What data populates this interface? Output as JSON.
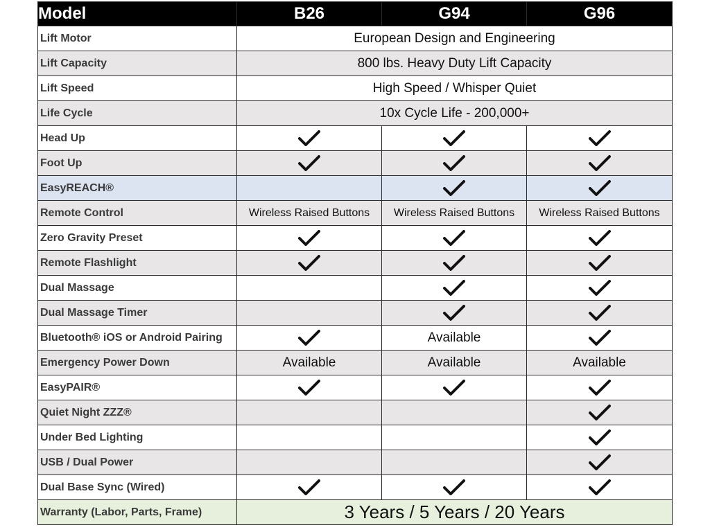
{
  "header": {
    "label": "Model",
    "models": [
      "B26",
      "G94",
      "G96"
    ]
  },
  "rows": [
    {
      "feature": "Lift Motor",
      "span": "European Design and Engineering",
      "bg": "light"
    },
    {
      "feature": "Lift Capacity",
      "span": "800 lbs. Heavy Duty Lift Capacity",
      "bg": "gray"
    },
    {
      "feature": "Lift Speed",
      "span": "High Speed / Whisper Quiet",
      "bg": "light"
    },
    {
      "feature": "Life Cycle",
      "span": "10x Cycle Life - 200,000+",
      "bg": "gray"
    },
    {
      "feature": "Head Up",
      "cells": [
        "check",
        "check",
        "check"
      ],
      "bg": "light"
    },
    {
      "feature": "Foot Up",
      "cells": [
        "check",
        "check",
        "check"
      ],
      "bg": "gray"
    },
    {
      "feature": "EasyREACH®",
      "cells": [
        "",
        "check",
        "check"
      ],
      "bg": "blue"
    },
    {
      "feature": "Remote Control",
      "cells": [
        "Wireless Raised Buttons",
        "Wireless Raised Buttons",
        "Wireless Raised Buttons"
      ],
      "bg": "gray",
      "small": true
    },
    {
      "feature": "Zero Gravity Preset",
      "cells": [
        "check",
        "check",
        "check"
      ],
      "bg": "light"
    },
    {
      "feature": "Remote Flashlight",
      "cells": [
        "check",
        "check",
        "check"
      ],
      "bg": "gray"
    },
    {
      "feature": "Dual Massage",
      "cells": [
        "",
        "check",
        "check"
      ],
      "bg": "light"
    },
    {
      "feature": "Dual Massage Timer",
      "cells": [
        "",
        "check",
        "check"
      ],
      "bg": "gray"
    },
    {
      "feature": "Bluetooth® iOS or Android Pairing",
      "cells": [
        "check",
        "Available",
        "check"
      ],
      "bg": "light"
    },
    {
      "feature": "Emergency Power Down",
      "cells": [
        "Available",
        "Available",
        "Available"
      ],
      "bg": "gray"
    },
    {
      "feature": "EasyPAIR®",
      "cells": [
        "check",
        "check",
        "check"
      ],
      "bg": "light"
    },
    {
      "feature": "Quiet Night ZZZ®",
      "cells": [
        "",
        "",
        "check"
      ],
      "bg": "gray"
    },
    {
      "feature": "Under Bed Lighting",
      "cells": [
        "",
        "",
        "check"
      ],
      "bg": "light"
    },
    {
      "feature": "USB / Dual Power",
      "cells": [
        "",
        "",
        "check"
      ],
      "bg": "gray"
    },
    {
      "feature": "Dual Base Sync (Wired)",
      "cells": [
        "check",
        "check",
        "check"
      ],
      "bg": "light"
    },
    {
      "feature": "Warranty (Labor, Parts, Frame)",
      "span": "3 Years / 5 Years / 20 Years",
      "bg": "green",
      "big": true
    }
  ]
}
